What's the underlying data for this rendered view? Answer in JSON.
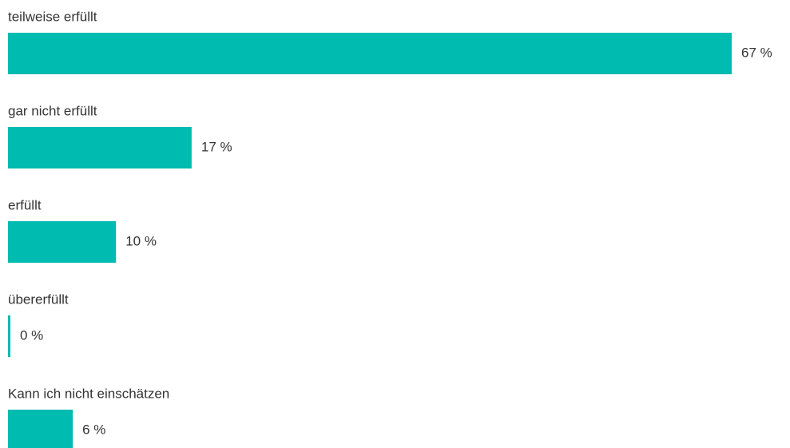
{
  "chart_data": {
    "type": "bar",
    "orientation": "horizontal",
    "categories": [
      "teilweise erfüllt",
      "gar nicht erfüllt",
      "erfüllt",
      "übererfüllt",
      "Kann ich nicht einschätzen"
    ],
    "values": [
      67,
      17,
      10,
      0,
      6
    ],
    "value_labels": [
      "67 %",
      "17 %",
      "10 %",
      "0 %",
      "6 %"
    ],
    "color": "#00bbb0"
  }
}
